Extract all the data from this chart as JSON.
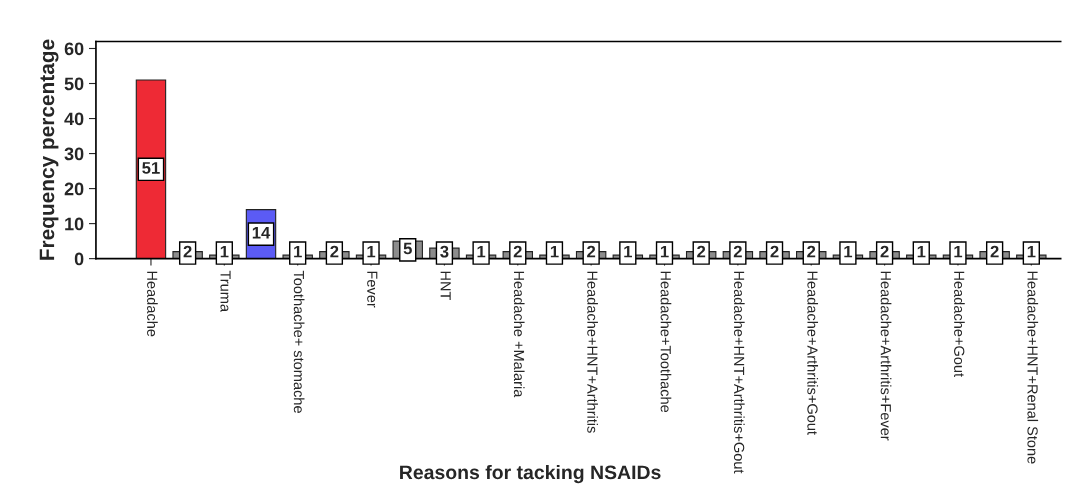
{
  "chart_data": {
    "type": "bar",
    "xlabel": "Reasons for tacking NSAIDs",
    "ylabel": "Frequency percentage",
    "categories": [
      "Headache",
      null,
      "Truma",
      null,
      "Toothache+ stomache",
      null,
      "Fever",
      null,
      "HNT",
      null,
      "Headache +Malaria",
      null,
      "Headache+HNT+Arthritis",
      null,
      "Headache+Toothache",
      null,
      "Headache+HNT+Arthritis+Gout",
      null,
      "Headache+Arthritis+Gout",
      null,
      "Headache+Arthritis+Fever",
      null,
      "Headache+Gout",
      null,
      "Headache+HNT+Renal Stone"
    ],
    "values": [
      51,
      2,
      1,
      14,
      1,
      2,
      1,
      5,
      3,
      1,
      2,
      1,
      2,
      1,
      1,
      2,
      2,
      2,
      2,
      1,
      2,
      1,
      1,
      2,
      1
    ],
    "colors": [
      "#ee2a35",
      "#8c8c8c",
      "#8c8c8c",
      "#5b5bf5",
      "#8c8c8c",
      "#8c8c8c",
      "#8c8c8c",
      "#8c8c8c",
      "#8c8c8c",
      "#8c8c8c",
      "#8c8c8c",
      "#8c8c8c",
      "#8c8c8c",
      "#8c8c8c",
      "#8c8c8c",
      "#8c8c8c",
      "#8c8c8c",
      "#8c8c8c",
      "#8c8c8c",
      "#8c8c8c",
      "#8c8c8c",
      "#8c8c8c",
      "#8c8c8c",
      "#8c8c8c",
      "#8c8c8c"
    ],
    "ylim": [
      0,
      62
    ],
    "yticks": [
      0,
      10,
      20,
      30,
      40,
      50,
      60
    ],
    "data_labels": true,
    "grid": false
  }
}
